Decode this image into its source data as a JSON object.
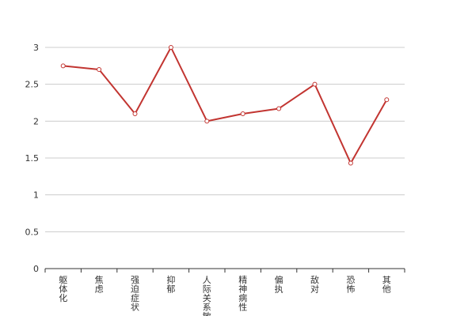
{
  "chart_data": {
    "type": "line",
    "categories": [
      "躯体化",
      "焦虑",
      "强迫症状",
      "抑郁",
      "人际关系敏感",
      "精神病性",
      "偏执",
      "敌对",
      "恐怖",
      "其他"
    ],
    "series": [
      {
        "values": [
          2.75,
          2.7,
          2.1,
          3.0,
          2.0,
          2.1,
          2.17,
          2.5,
          1.43,
          2.29
        ]
      }
    ],
    "ylim": [
      0,
      3
    ],
    "yticks": [
      "0",
      "0.5",
      "1",
      "1.5",
      "2",
      "2.5",
      "3"
    ],
    "grid": true,
    "colors": {
      "line": "#c23531",
      "axis": "#333333",
      "grid": "#cccccc"
    }
  }
}
